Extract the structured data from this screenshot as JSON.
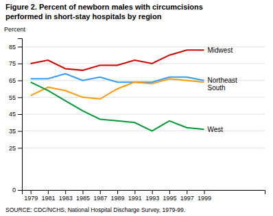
{
  "chart_data": {
    "type": "line",
    "title": "Figure 2. Percent of newborn males with circumcisions",
    "subtitle": "performed in short-stay hospitals by region",
    "y_label": "Percent",
    "annotations": [
      "SOURCE: CDC/NCHS, National Hospital Discharge Survey, 1979-99."
    ],
    "x": [
      1979,
      1981,
      1983,
      1985,
      1987,
      1989,
      1991,
      1993,
      1995,
      1997,
      1999
    ],
    "series": [
      {
        "name": "Midwest",
        "color": "#cc0000",
        "values": [
          75,
          77,
          72,
          71,
          74,
          74,
          77,
          75,
          80,
          83,
          83
        ]
      },
      {
        "name": "Northeast",
        "color": "#3399ff",
        "values": [
          66,
          66,
          69,
          65,
          67,
          64,
          64,
          64,
          67,
          67,
          65
        ]
      },
      {
        "name": "South",
        "color": "#ff9900",
        "values": [
          56,
          61,
          59,
          55,
          54,
          60,
          64,
          63,
          66,
          65,
          64
        ]
      },
      {
        "name": "West",
        "color": "#009933",
        "values": [
          64,
          59,
          53,
          47,
          42,
          41,
          40,
          35,
          41,
          37,
          36
        ]
      }
    ],
    "xlim": [
      1978,
      2006
    ],
    "xticks": [
      1979,
      1981,
      1983,
      1985,
      1987,
      1989,
      1991,
      1993,
      1995,
      1997,
      1999
    ],
    "ylim": [
      0,
      90
    ],
    "yticks": [
      0,
      25,
      35,
      45,
      55,
      65,
      75,
      85
    ],
    "grid": true
  }
}
